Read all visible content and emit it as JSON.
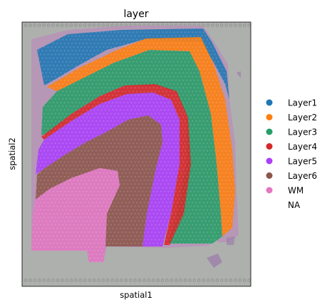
{
  "chart_data": {
    "type": "scatter",
    "title": "layer",
    "xlabel": "spatial1",
    "ylabel": "spatial2",
    "legend_position": "right",
    "series": [
      {
        "name": "Layer1",
        "color": "#1f77b4"
      },
      {
        "name": "Layer2",
        "color": "#ff7f0e"
      },
      {
        "name": "Layer3",
        "color": "#279e68"
      },
      {
        "name": "Layer4",
        "color": "#d62728"
      },
      {
        "name": "Layer5",
        "color": "#aa40fc"
      },
      {
        "name": "Layer6",
        "color": "#8c564b"
      },
      {
        "name": "WM",
        "color": "#e377c2"
      },
      {
        "name": "NA",
        "color": null
      }
    ],
    "background": "tissue image (gray slide with H&E-stained tissue)",
    "grid": false
  }
}
